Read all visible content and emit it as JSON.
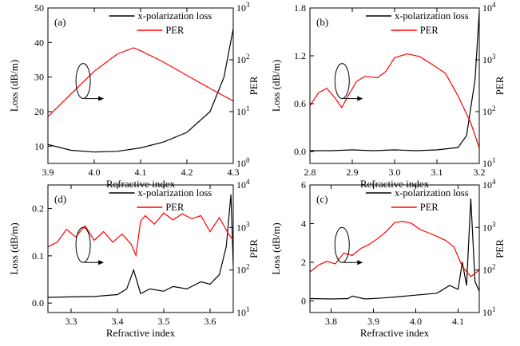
{
  "chart_data": [
    {
      "type": "line",
      "panel_label": "(a)",
      "xlabel": "Refractive index",
      "ylabel": "Loss (dB/m)",
      "y2label": "PER",
      "xlim": [
        3.9,
        4.3
      ],
      "ylim": [
        5,
        50
      ],
      "y2lim_log": [
        1,
        1000
      ],
      "xticks": [
        "3.9",
        "4.0",
        "4.1",
        "4.2",
        "4.3"
      ],
      "yticks": [
        "10",
        "20",
        "30",
        "40",
        "50"
      ],
      "y2ticks": [
        {
          "base": "10",
          "exp": "0"
        },
        {
          "base": "10",
          "exp": "1"
        },
        {
          "base": "10",
          "exp": "2"
        },
        {
          "base": "10",
          "exp": "3"
        }
      ],
      "legend": [
        "x-polarization loss",
        "PER"
      ],
      "series": [
        {
          "name": "x-polarization loss",
          "axis": "left",
          "color": "#000000",
          "x": [
            3.9,
            3.95,
            4.0,
            4.05,
            4.1,
            4.15,
            4.2,
            4.25,
            4.28,
            4.3
          ],
          "y": [
            10.5,
            8.8,
            8.3,
            8.5,
            9.5,
            11.2,
            14.0,
            20.0,
            30.0,
            44.0
          ]
        },
        {
          "name": "PER",
          "axis": "right",
          "color": "#ff0000",
          "x": [
            3.9,
            3.95,
            4.0,
            4.05,
            4.085,
            4.1,
            4.15,
            4.2,
            4.25,
            4.3
          ],
          "y": [
            8,
            22,
            60,
            130,
            170,
            150,
            90,
            50,
            28,
            16
          ]
        }
      ],
      "annotations": [
        "ellipse with arrow pointing to right axis"
      ]
    },
    {
      "type": "line",
      "panel_label": "(b)",
      "xlabel": "Refractive index",
      "ylabel": "Loss (dB/m)",
      "y2label": "PER",
      "xlim": [
        2.8,
        3.2
      ],
      "ylim": [
        -0.15,
        1.8
      ],
      "y2lim_log": [
        10,
        10000
      ],
      "xticks": [
        "2.8",
        "2.9",
        "3.0",
        "3.1",
        "3.2"
      ],
      "yticks": [
        "0.0",
        "0.6",
        "1.2",
        "1.8"
      ],
      "y2ticks": [
        {
          "base": "10",
          "exp": "1"
        },
        {
          "base": "10",
          "exp": "2"
        },
        {
          "base": "10",
          "exp": "3"
        },
        {
          "base": "10",
          "exp": "4"
        }
      ],
      "legend": [
        "x-polarization loss",
        "PER"
      ],
      "series": [
        {
          "name": "x-polarization loss",
          "axis": "left",
          "color": "#000000",
          "x": [
            2.8,
            2.85,
            2.9,
            2.95,
            3.0,
            3.05,
            3.1,
            3.15,
            3.17,
            3.19,
            3.2
          ],
          "y": [
            0.01,
            0.01,
            0.02,
            0.01,
            0.02,
            0.01,
            0.02,
            0.05,
            0.2,
            0.9,
            1.75
          ]
        },
        {
          "name": "PER",
          "axis": "right",
          "color": "#ff0000",
          "x": [
            2.8,
            2.82,
            2.84,
            2.86,
            2.875,
            2.89,
            2.91,
            2.93,
            2.96,
            2.98,
            3.0,
            3.03,
            3.06,
            3.09,
            3.12,
            3.15,
            3.18,
            3.2
          ],
          "y": [
            130,
            230,
            280,
            180,
            120,
            200,
            380,
            480,
            450,
            600,
            1100,
            1300,
            1150,
            800,
            550,
            200,
            60,
            20
          ]
        }
      ],
      "annotations": [
        "ellipse with arrow pointing to right axis"
      ]
    },
    {
      "type": "line",
      "panel_label": "(d)",
      "xlabel": "Refractive index",
      "ylabel": "Loss (dB/m)",
      "y2label": "PER",
      "xlim": [
        3.25,
        3.65
      ],
      "ylim": [
        -0.02,
        0.25
      ],
      "y2lim_log": [
        10,
        10000
      ],
      "xticks": [
        "3.3",
        "3.4",
        "3.5",
        "3.6"
      ],
      "yticks": [
        "0.0",
        "0.1",
        "0.2"
      ],
      "y2ticks": [
        {
          "base": "10",
          "exp": "1"
        },
        {
          "base": "10",
          "exp": "2"
        },
        {
          "base": "10",
          "exp": "3"
        },
        {
          "base": "10",
          "exp": "4"
        }
      ],
      "legend": [
        "x-polarization loss",
        "PER"
      ],
      "series": [
        {
          "name": "x-polarization loss",
          "axis": "left",
          "color": "#000000",
          "x": [
            3.25,
            3.3,
            3.35,
            3.4,
            3.42,
            3.435,
            3.45,
            3.47,
            3.5,
            3.52,
            3.55,
            3.58,
            3.6,
            3.62,
            3.635,
            3.645,
            3.65
          ],
          "y": [
            0.012,
            0.013,
            0.014,
            0.018,
            0.03,
            0.07,
            0.02,
            0.03,
            0.025,
            0.035,
            0.03,
            0.045,
            0.04,
            0.06,
            0.12,
            0.23,
            0.08
          ]
        },
        {
          "name": "PER",
          "axis": "right",
          "color": "#ff0000",
          "x": [
            3.25,
            3.27,
            3.29,
            3.31,
            3.33,
            3.35,
            3.37,
            3.39,
            3.41,
            3.43,
            3.44,
            3.45,
            3.46,
            3.48,
            3.5,
            3.52,
            3.54,
            3.56,
            3.58,
            3.6,
            3.62,
            3.64,
            3.65
          ],
          "y": [
            350,
            450,
            900,
            600,
            1100,
            500,
            800,
            450,
            700,
            400,
            220,
            1400,
            1900,
            1200,
            2200,
            1500,
            2100,
            1600,
            1900,
            800,
            1700,
            700,
            500
          ]
        }
      ],
      "annotations": [
        "ellipse with arrow pointing to right axis"
      ]
    },
    {
      "type": "line",
      "panel_label": "(c)",
      "xlabel": "Refractive index",
      "ylabel": "Loss (dB/m)",
      "y2label": "PER",
      "xlim": [
        3.75,
        4.15
      ],
      "ylim": [
        -0.6,
        6
      ],
      "y2lim_log": [
        10,
        10000
      ],
      "xticks": [
        "3.8",
        "3.9",
        "4.0",
        "4.1"
      ],
      "yticks": [
        "0",
        "2",
        "4",
        "6"
      ],
      "y2ticks": [
        {
          "base": "10",
          "exp": "1"
        },
        {
          "base": "10",
          "exp": "2"
        },
        {
          "base": "10",
          "exp": "3"
        },
        {
          "base": "10",
          "exp": "4"
        }
      ],
      "legend": [
        "x-polarization loss",
        "PER"
      ],
      "series": [
        {
          "name": "x-polarization loss",
          "axis": "left",
          "color": "#000000",
          "x": [
            3.75,
            3.8,
            3.84,
            3.85,
            3.88,
            3.92,
            3.95,
            4.0,
            4.05,
            4.08,
            4.1,
            4.11,
            4.12,
            4.13,
            4.14,
            4.15
          ],
          "y": [
            0.12,
            0.1,
            0.12,
            0.25,
            0.1,
            0.15,
            0.2,
            0.3,
            0.4,
            0.8,
            0.6,
            2.0,
            0.8,
            5.3,
            1.0,
            0.5
          ]
        },
        {
          "name": "PER",
          "axis": "right",
          "color": "#ff0000",
          "x": [
            3.75,
            3.77,
            3.79,
            3.81,
            3.83,
            3.85,
            3.87,
            3.89,
            3.91,
            3.93,
            3.95,
            3.97,
            3.99,
            4.01,
            4.03,
            4.05,
            4.07,
            4.09,
            4.11,
            4.13,
            4.15
          ],
          "y": [
            90,
            130,
            160,
            140,
            250,
            220,
            320,
            400,
            550,
            800,
            1300,
            1400,
            1250,
            900,
            750,
            620,
            500,
            350,
            120,
            70,
            100
          ]
        }
      ],
      "annotations": [
        "ellipse with arrow pointing to right axis"
      ]
    }
  ]
}
